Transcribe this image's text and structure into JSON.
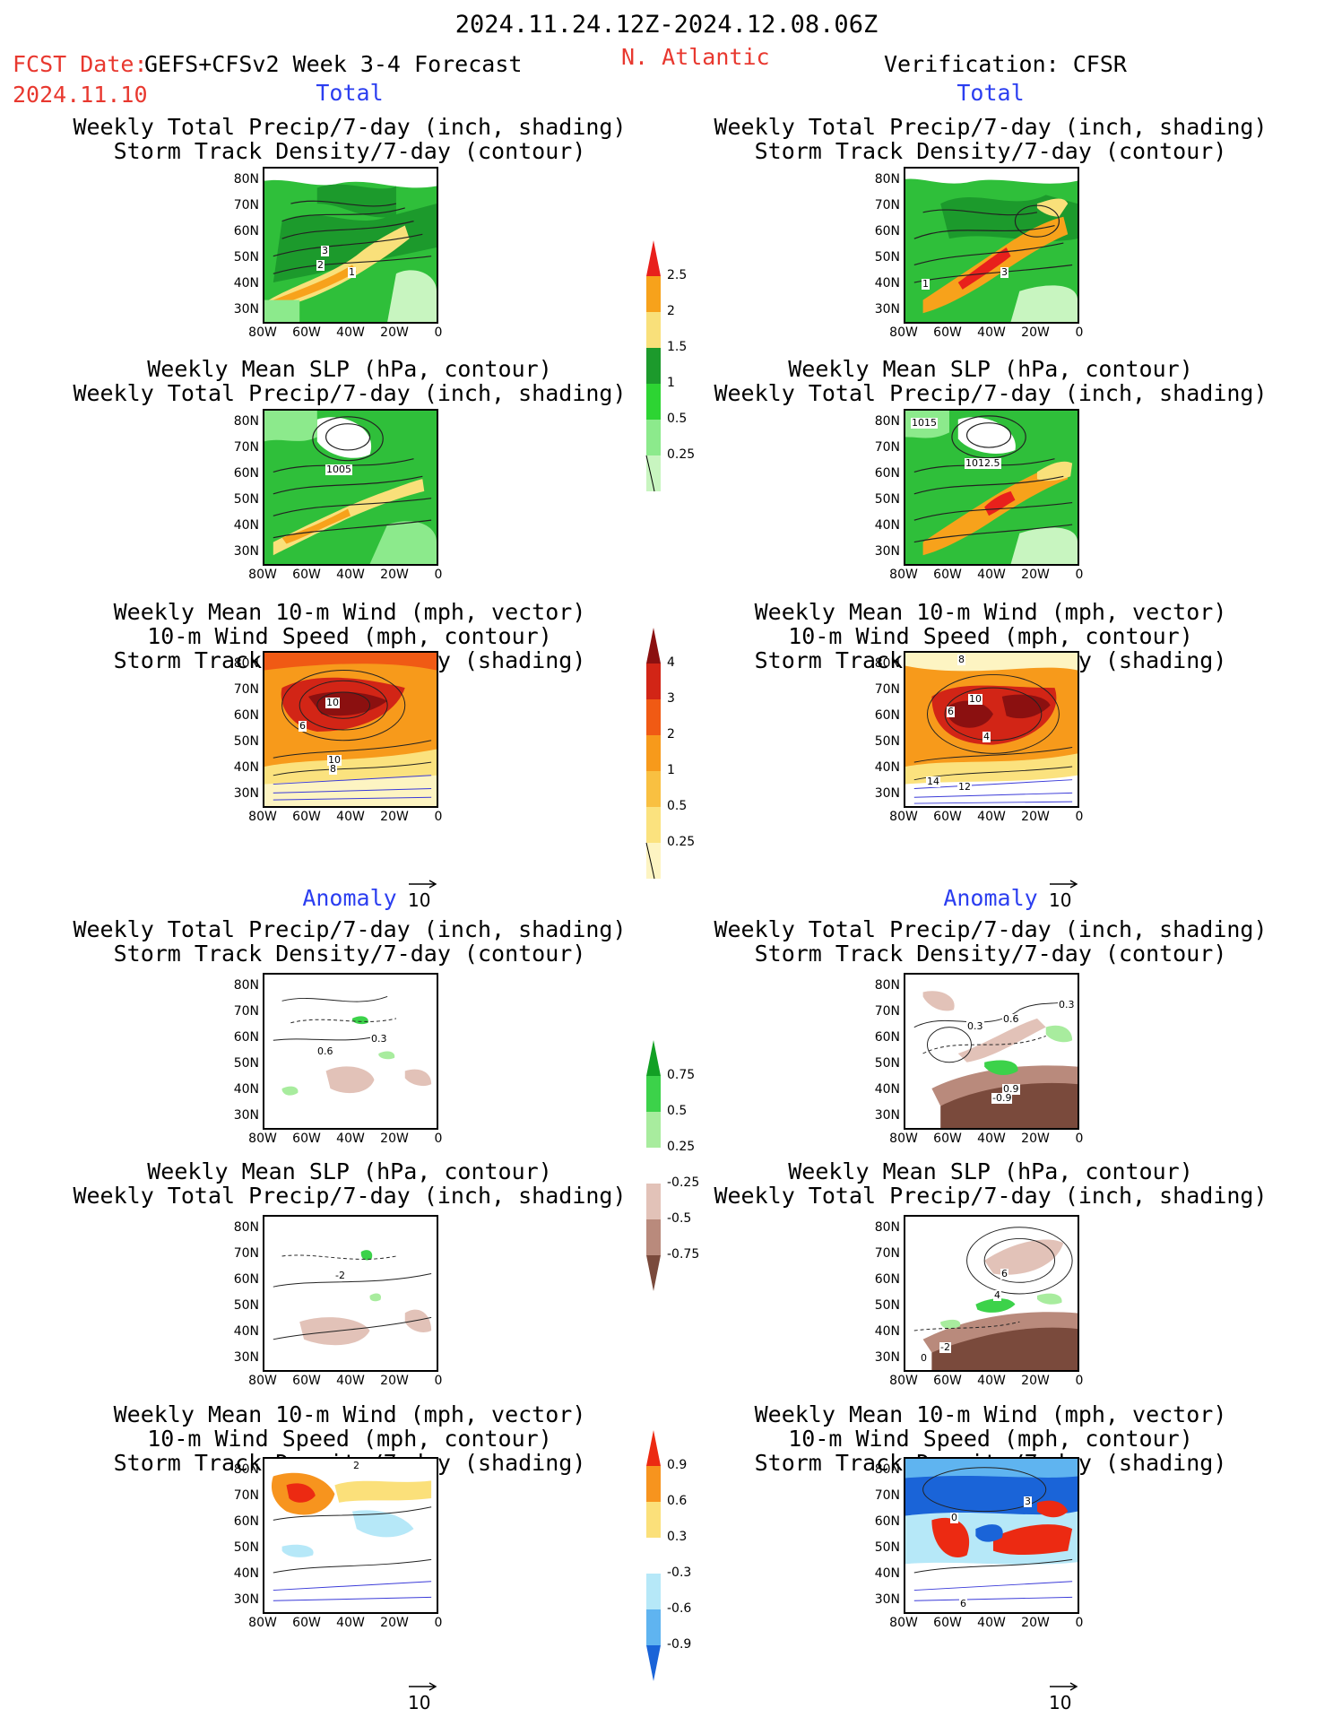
{
  "header": {
    "period": "2024.11.24.12Z-2024.12.08.06Z",
    "fcst_date_label": "FCST Date:",
    "forecast_title": "GEFS+CFSv2 Week 3-4 Forecast",
    "fcst_date": "2024.11.10",
    "region": "N. Atlantic",
    "verification": "Verification: CFSR"
  },
  "sections": {
    "total": "Total",
    "anomaly": "Anomaly"
  },
  "panel_titles": {
    "precip_storm": [
      "Weekly Total Precip/7-day (inch, shading)",
      "Storm Track Density/7-day (contour)"
    ],
    "slp_precip": [
      "Weekly Mean SLP (hPa, contour)",
      "Weekly Total Precip/7-day (inch, shading)"
    ],
    "wind_storm": [
      "Weekly Mean 10-m Wind (mph, vector)",
      "10-m Wind Speed (mph, contour)",
      "Storm Track Density/7-day (shading)"
    ]
  },
  "axes": {
    "lat": [
      "80N",
      "70N",
      "60N",
      "50N",
      "40N",
      "30N"
    ],
    "lon": [
      "80W",
      "60W",
      "40W",
      "20W",
      "0"
    ]
  },
  "contour_labels": {
    "f_precip": [
      "3",
      "2",
      "1"
    ],
    "v_precip": [
      "1",
      "3"
    ],
    "f_slp": [
      "1005"
    ],
    "v_slp": [
      "1015",
      "1012.5"
    ],
    "f_wind": [
      "10",
      "6",
      "10",
      "8"
    ],
    "v_wind": [
      "8",
      "10",
      "6",
      "4",
      "14",
      "12"
    ],
    "fa_precip": [
      "0.6",
      "0.3"
    ],
    "va_precip": [
      "0.3",
      "0.6",
      "0.3",
      "0.9",
      "-0.9"
    ],
    "fa_slp": [
      "-2"
    ],
    "va_slp": [
      "6",
      "4",
      "-2",
      "0"
    ],
    "fa_wind": [
      "2"
    ],
    "va_wind": [
      "0",
      "3",
      "6"
    ]
  },
  "vector_ref": "10",
  "colorbars": {
    "precip_total": {
      "labels": [
        "2.5",
        "2",
        "1.5",
        "1",
        "0.5",
        "0.25"
      ],
      "colors": [
        "#e8201c",
        "#f7a21b",
        "#f9e07a",
        "#1c9a2c",
        "#2dd433",
        "#8cea8c",
        "#c8f5c0"
      ]
    },
    "storm_total": {
      "labels": [
        "4",
        "3",
        "2",
        "1",
        "0.5",
        "0.25"
      ],
      "colors": [
        "#8b1010",
        "#d22516",
        "#f05a14",
        "#f79a1b",
        "#f9c041",
        "#fbe27e",
        "#fdf4c2"
      ]
    },
    "precip_anom": {
      "labels": [
        "0.75",
        "0.5",
        "0.25",
        "-0.25",
        "-0.5",
        "-0.75"
      ],
      "colors": [
        "#12a024",
        "#3cd24a",
        "#a8ec9e",
        "#ffffff",
        "#e2c2b8",
        "#b98a7c",
        "#7a4a3c"
      ]
    },
    "storm_anom": {
      "labels": [
        "0.9",
        "0.6",
        "0.3",
        "-0.3",
        "-0.6",
        "-0.9"
      ],
      "colors": [
        "#ec2a12",
        "#f7941e",
        "#fbe07a",
        "#ffffff",
        "#b6e8f8",
        "#5fb4f0",
        "#1a64d8"
      ]
    }
  },
  "colors": {
    "header_red": "#e8382f",
    "section_blue": "#2b3ef0",
    "land_green": "#2fbf3a",
    "dark_green": "#1c9a2c"
  }
}
